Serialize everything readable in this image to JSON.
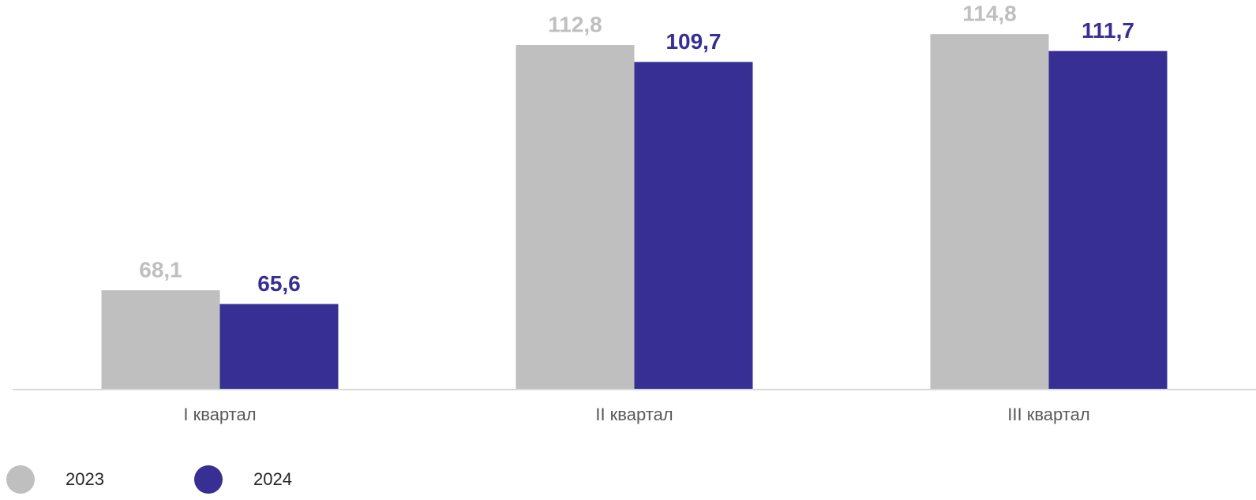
{
  "chart_data": {
    "type": "bar",
    "categories": [
      "I квартал",
      "II квартал",
      "III квартал"
    ],
    "series": [
      {
        "name": "2023",
        "color": "#bfbfbf",
        "values": [
          68.1,
          112.8,
          114.8
        ],
        "value_labels": [
          "68,1",
          "112,8",
          "114,8"
        ]
      },
      {
        "name": "2024",
        "color": "#372f93",
        "values": [
          65.6,
          109.7,
          111.7
        ],
        "value_labels": [
          "65,6",
          "109,7",
          "111,7"
        ]
      }
    ],
    "ylim": [
      50,
      121
    ],
    "legend": "bottom-left"
  }
}
